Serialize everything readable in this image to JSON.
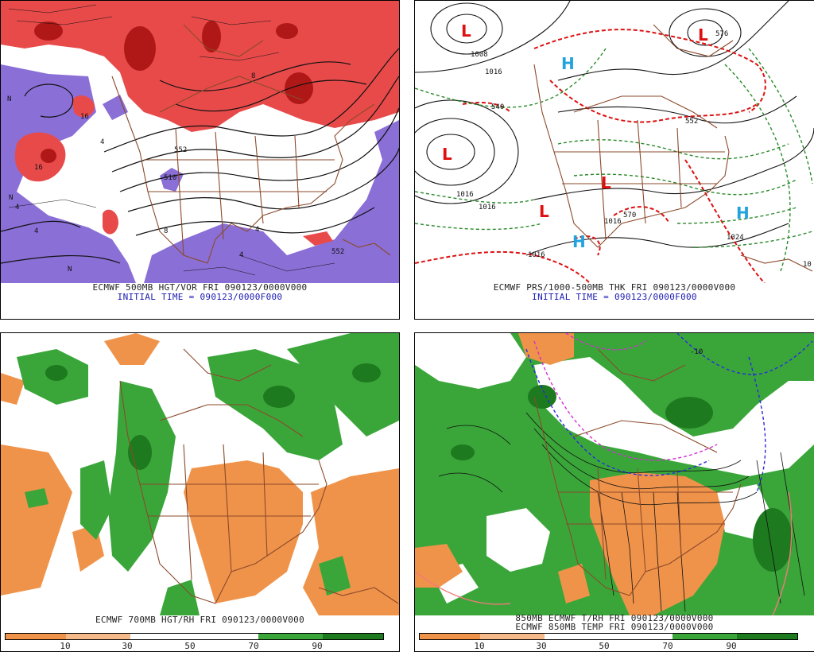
{
  "panels": [
    {
      "id": "p1",
      "caption_line1": "ECMWF 500MB HGT/VOR FRI 090123/0000V000",
      "caption_line2": "INITIAL TIME = 090123/0000F000",
      "contour_labels": [
        "16",
        "16",
        "4",
        "4",
        "4",
        "8",
        "8",
        "4",
        "4",
        "552",
        "510",
        "552",
        "N",
        "N",
        "N"
      ]
    },
    {
      "id": "p2",
      "caption_line1": "ECMWF PRS/1000-500MB THK FRI 090123/0000V000",
      "caption_line2": "INITIAL TIME = 090123/0000F000",
      "contour_labels": [
        "1008",
        "1016",
        "1016",
        "1016",
        "1016",
        "1024",
        "1016",
        "540",
        "570",
        "576",
        "552",
        "10"
      ],
      "pressure_centers": [
        {
          "type": "L",
          "color": "#dd1111"
        },
        {
          "type": "L",
          "color": "#dd1111"
        },
        {
          "type": "L",
          "color": "#dd1111"
        },
        {
          "type": "L",
          "color": "#dd1111"
        },
        {
          "type": "L",
          "color": "#dd1111"
        },
        {
          "type": "H",
          "color": "#22a3dd"
        },
        {
          "type": "H",
          "color": "#22a3dd"
        },
        {
          "type": "H",
          "color": "#22a3dd"
        }
      ]
    },
    {
      "id": "p3",
      "caption_line1": "ECMWF 700MB HGT/RH FRI 090123/0000V000",
      "colorbar_labels": [
        "10",
        "30",
        "50",
        "70",
        "90"
      ]
    },
    {
      "id": "p4",
      "caption_line1": "850MB ECMWF T/RH FRI 090123/0000V000",
      "caption_line2": "ECMWF 850MB TEMP FRI 090123/0000V000",
      "contour_labels": [
        "-10"
      ],
      "colorbar_labels": [
        "10",
        "30",
        "50",
        "70",
        "90"
      ]
    }
  ],
  "colors": {
    "rh_dry": "#f0934a",
    "rh_moist": "#3aa63a",
    "rh_wet": "#1e7a1e",
    "vorticity_pos": "#e84a4a",
    "vorticity_pos_dark": "#b01818",
    "vorticity_neg": "#8a6fd6",
    "borders": "#8b4a2b",
    "thickness_warm": "#dd1111",
    "thickness_cold": "#2a8a2a"
  }
}
